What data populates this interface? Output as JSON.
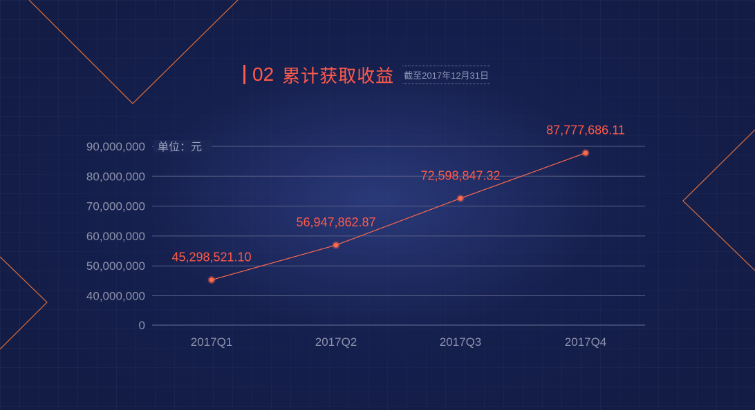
{
  "header": {
    "index": "02",
    "title": "累计获取收益",
    "note": "截至2017年12月31日"
  },
  "colors": {
    "accent": "#ff5a4a",
    "line": "#ff6a4d",
    "grid": "#5a6088",
    "deco": "#e0703a"
  },
  "chart_data": {
    "type": "line",
    "categories": [
      "2017Q1",
      "2017Q2",
      "2017Q3",
      "2017Q4"
    ],
    "series": [
      {
        "values": [
          45298521.1,
          56947862.87,
          72598847.32,
          87777686.11
        ],
        "labels": [
          "45,298,521.10",
          "56,947,862.87",
          "72,598,847.32",
          "87,777,686.11"
        ]
      }
    ],
    "yticks": [
      "0",
      "40,000,000",
      "50,000,000",
      "60,000,000",
      "70,000,000",
      "80,000,000",
      "90,000,000"
    ],
    "yunit": "单位：元",
    "ylim": [
      30000000,
      90000000
    ],
    "y_axis_break": true,
    "grid": true
  }
}
